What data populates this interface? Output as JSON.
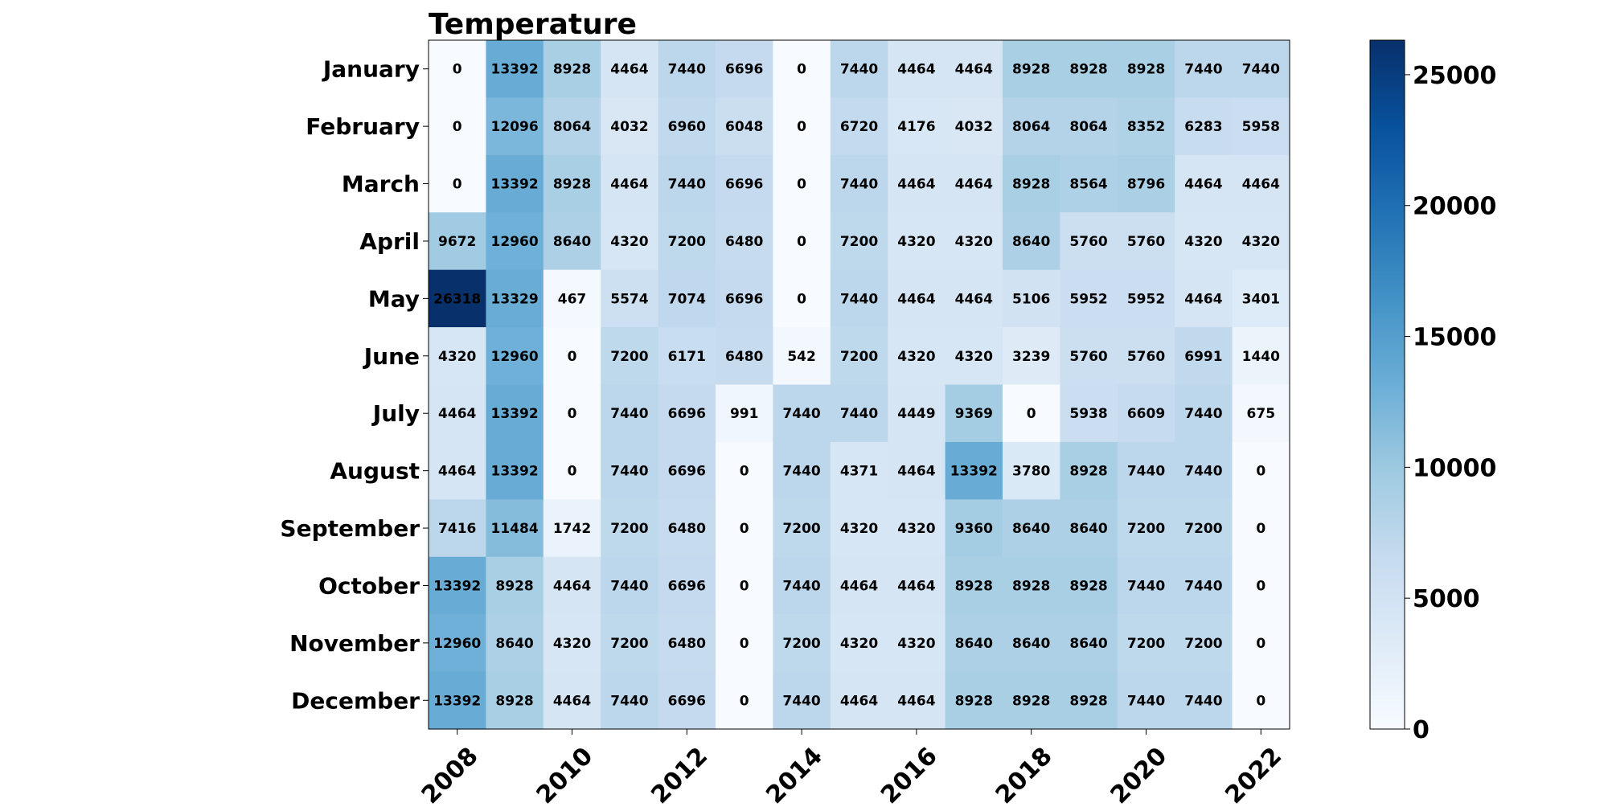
{
  "chart_data": {
    "type": "heatmap",
    "title": "Temperature",
    "xlabel": "",
    "ylabel": "",
    "x_categories": [
      2008,
      2009,
      2010,
      2011,
      2012,
      2013,
      2014,
      2015,
      2016,
      2017,
      2018,
      2019,
      2020,
      2021,
      2022
    ],
    "x_tick_labels": [
      "2008",
      "2010",
      "2012",
      "2014",
      "2016",
      "2018",
      "2020",
      "2022"
    ],
    "y_categories": [
      "January",
      "February",
      "March",
      "April",
      "May",
      "June",
      "July",
      "August",
      "September",
      "October",
      "November",
      "December"
    ],
    "values": [
      [
        0,
        13392,
        8928,
        4464,
        7440,
        6696,
        0,
        7440,
        4464,
        4464,
        8928,
        8928,
        8928,
        7440,
        7440
      ],
      [
        0,
        12096,
        8064,
        4032,
        6960,
        6048,
        0,
        6720,
        4176,
        4032,
        8064,
        8064,
        8352,
        6283,
        5958
      ],
      [
        0,
        13392,
        8928,
        4464,
        7440,
        6696,
        0,
        7440,
        4464,
        4464,
        8928,
        8564,
        8796,
        4464,
        4464
      ],
      [
        9672,
        12960,
        8640,
        4320,
        7200,
        6480,
        0,
        7200,
        4320,
        4320,
        8640,
        5760,
        5760,
        4320,
        4320
      ],
      [
        26318,
        13329,
        467,
        5574,
        7074,
        6696,
        0,
        7440,
        4464,
        4464,
        5106,
        5952,
        5952,
        4464,
        3401
      ],
      [
        4320,
        12960,
        0,
        7200,
        6171,
        6480,
        542,
        7200,
        4320,
        4320,
        3239,
        5760,
        5760,
        6991,
        1440
      ],
      [
        4464,
        13392,
        0,
        7440,
        6696,
        991,
        7440,
        7440,
        4449,
        9369,
        0,
        5938,
        6609,
        7440,
        675
      ],
      [
        4464,
        13392,
        0,
        7440,
        6696,
        0,
        7440,
        4371,
        4464,
        13392,
        3780,
        8928,
        7440,
        7440,
        0
      ],
      [
        7416,
        11484,
        1742,
        7200,
        6480,
        0,
        7200,
        4320,
        4320,
        9360,
        8640,
        8640,
        7200,
        7200,
        0
      ],
      [
        13392,
        8928,
        4464,
        7440,
        6696,
        0,
        7440,
        4464,
        4464,
        8928,
        8928,
        8928,
        7440,
        7440,
        0
      ],
      [
        12960,
        8640,
        4320,
        7200,
        6480,
        0,
        7200,
        4320,
        4320,
        8640,
        8640,
        8640,
        7200,
        7200,
        0
      ],
      [
        13392,
        8928,
        4464,
        7440,
        6696,
        0,
        7440,
        4464,
        4464,
        8928,
        8928,
        8928,
        7440,
        7440,
        0
      ]
    ],
    "colorbar": {
      "min": 0,
      "max": 26318,
      "ticks": [
        0,
        5000,
        10000,
        15000,
        20000,
        25000
      ],
      "colormap": "Blues",
      "colors": [
        "#f7fbff",
        "#deebf7",
        "#c6dbef",
        "#9ecae1",
        "#6baed6",
        "#4292c6",
        "#2171b5",
        "#08519c",
        "#08306b"
      ]
    },
    "grid": false
  }
}
